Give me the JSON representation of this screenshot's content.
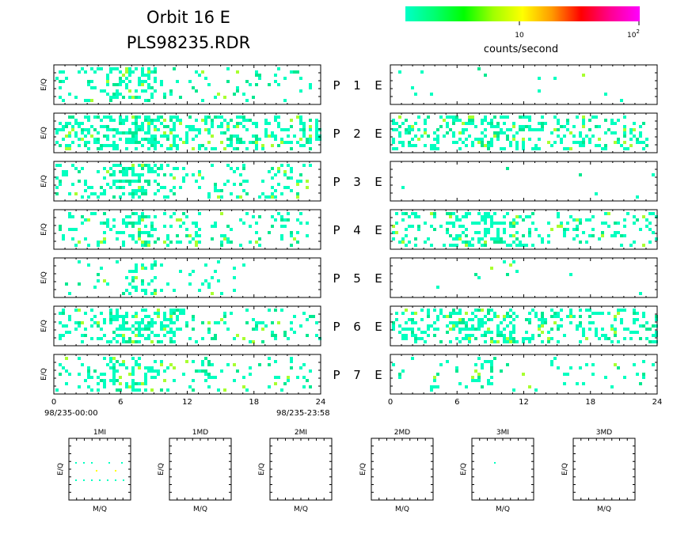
{
  "header": {
    "title_line1": "Orbit 16 E",
    "title_line2": "PLS98235.RDR"
  },
  "colorbar": {
    "tick_10": "10",
    "tick_100_base": "10",
    "tick_100_exp": "2",
    "label": "counts/second",
    "stops": [
      "#00ffc8",
      "#00ff70",
      "#00ff00",
      "#a0ff00",
      "#ffff00",
      "#ff9a00",
      "#ff0000",
      "#ff0090",
      "#ff00ff"
    ]
  },
  "colors": {
    "low": "#00ffc0",
    "mid": "#00e890",
    "high": "#a8ff30",
    "max": "#ffff00"
  },
  "ylabel": "E/Q",
  "time_axis": {
    "start_label": "98/235-00:00",
    "end_label": "98/235-23:58",
    "ticks": [
      "0",
      "6",
      "12",
      "18",
      "24"
    ]
  },
  "channels": [
    {
      "p": "P",
      "n": "1",
      "e": "E"
    },
    {
      "p": "P",
      "n": "2",
      "e": "E"
    },
    {
      "p": "P",
      "n": "3",
      "e": "E"
    },
    {
      "p": "P",
      "n": "4",
      "e": "E"
    },
    {
      "p": "P",
      "n": "5",
      "e": "E"
    },
    {
      "p": "P",
      "n": "6",
      "e": "E"
    },
    {
      "p": "P",
      "n": "7",
      "e": "E"
    }
  ],
  "mass_panels": {
    "titles": [
      "1MI",
      "1MD",
      "2MI",
      "2MD",
      "3MI",
      "3MD"
    ],
    "ylabel": "E/Q",
    "xlabel": "M/Q"
  },
  "chart_data": {
    "type": "heatmap",
    "x_unit": "hours (UT)",
    "xlim": [
      0,
      24
    ],
    "xticks": [
      0,
      6,
      12,
      18,
      24
    ],
    "color_scale": "log",
    "color_range": [
      1,
      100
    ],
    "left_column": [
      {
        "channel": "P 1",
        "activity": [
          [
            0,
            23,
            0.25
          ],
          [
            5,
            9,
            0.7
          ]
        ]
      },
      {
        "channel": "P 2",
        "activity": [
          [
            0,
            24,
            0.6
          ],
          [
            4,
            11,
            0.95
          ]
        ]
      },
      {
        "channel": "P 3",
        "activity": [
          [
            0,
            23,
            0.35
          ],
          [
            5,
            9,
            0.8
          ]
        ]
      },
      {
        "channel": "P 4",
        "activity": [
          [
            0,
            23,
            0.25
          ],
          [
            6,
            9,
            0.75
          ]
        ]
      },
      {
        "channel": "P 5",
        "activity": [
          [
            1,
            18,
            0.12
          ],
          [
            6,
            9,
            0.45
          ]
        ]
      },
      {
        "channel": "P 6",
        "activity": [
          [
            0,
            24,
            0.35
          ],
          [
            5,
            11,
            0.8
          ]
        ]
      },
      {
        "channel": "P 7",
        "activity": [
          [
            0,
            23,
            0.25
          ],
          [
            5,
            9,
            0.7
          ]
        ]
      }
    ],
    "right_column": [
      {
        "channel": "P 1 E",
        "activity": [
          [
            0,
            24,
            0.02
          ]
        ]
      },
      {
        "channel": "P 2 E",
        "activity": [
          [
            0,
            23,
            0.45
          ],
          [
            5,
            12,
            0.7
          ]
        ]
      },
      {
        "channel": "P 3 E",
        "activity": [
          [
            0,
            24,
            0.01
          ]
        ]
      },
      {
        "channel": "P 4 E",
        "activity": [
          [
            0,
            24,
            0.35
          ],
          [
            5,
            11,
            0.8
          ]
        ]
      },
      {
        "channel": "P 5 E",
        "activity": [
          [
            0,
            24,
            0.03
          ]
        ]
      },
      {
        "channel": "P 6 E",
        "activity": [
          [
            0,
            24,
            0.45
          ],
          [
            5,
            11,
            0.85
          ]
        ]
      },
      {
        "channel": "P 7 E",
        "activity": [
          [
            0,
            24,
            0.1
          ],
          [
            6,
            9,
            0.35
          ]
        ]
      }
    ]
  }
}
